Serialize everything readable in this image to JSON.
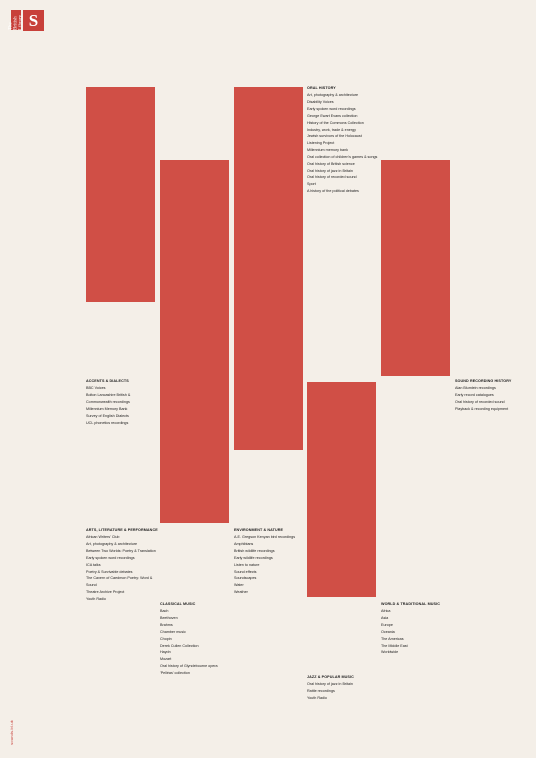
{
  "logo": {
    "small_text": "The British Library",
    "big_letter": "S"
  },
  "footer": {
    "url": "sounds.bl.uk"
  },
  "colors": {
    "background": "#f4efe8",
    "bars": "#d04f46",
    "accent": "#c8403a"
  },
  "groups": [
    {
      "id": "oral-history",
      "heading": "Oral History",
      "items": [
        "Art, photography & architecture",
        "Disability Voices",
        "Early spoken word recordings",
        "George Ewart Evans collection",
        "History of the Commons Collection",
        "Industry, work, trade & energy",
        "Jewish survivors of the Holocaust",
        "Listening Project",
        "Millennium memory bank",
        "Oral collection of children's games & songs",
        "Oral history of British science",
        "Oral history of jazz in Britain",
        "Oral history of recorded sound",
        "Sport",
        "A history of the political debates"
      ]
    },
    {
      "id": "accents",
      "heading": "Accents & Dialects",
      "items": [
        "BBC Voices",
        "Bolton Lancashire British &",
        "Commonwealth recordings",
        "Millennium Memory Bank",
        "Survey of English Dialects",
        "UCL phonetics recordings"
      ]
    },
    {
      "id": "sound-history",
      "heading": "Sound Recording History",
      "items": [
        "Alan Blumlein recordings",
        "Early record catalogues",
        "Oral history of recorded sound",
        "Playback & recording equipment"
      ]
    },
    {
      "id": "arts",
      "heading": "Arts, Literature & Performance",
      "items": [
        "African Writers' Club",
        "Art, photography & architecture",
        "Between Two Worlds: Poetry & Translation",
        "Early spoken word recordings",
        "ICA talks",
        "Poetry & Survivable debates",
        "The Cavern of Caedmon Poetry: Word &",
        "Sound",
        "Theatre Archive Project",
        "Youth Radio"
      ]
    },
    {
      "id": "environment",
      "heading": "Environment & Nature",
      "items": [
        "A.E. Gregson Kenyan bird recordings",
        "Amphibians",
        "British wildlife recordings",
        "Early wildlife recordings",
        "Listen to nature",
        "Sound effects",
        "Soundscapes",
        "Water",
        "Weather"
      ]
    },
    {
      "id": "classical",
      "heading": "Classical Music",
      "items": [
        "Bach",
        "Beethoven",
        "Brahms",
        "Chamber music",
        "Chopin",
        "Derek Cullen Collection",
        "Haydn",
        "Mozart",
        "Oral history of Glyndebourne opera",
        "'Pelléas' collection"
      ]
    },
    {
      "id": "world",
      "heading": "World & Traditional Music",
      "items": [
        "Africa",
        "Asia",
        "Europe",
        "Oceania",
        "The Americas",
        "The Middle East",
        "Worldwide"
      ]
    },
    {
      "id": "jazz",
      "heading": "Jazz & Popular Music",
      "items": [
        "Oral history of jazz in Britain",
        "Rattle recordings",
        "Youth Radio"
      ]
    }
  ]
}
